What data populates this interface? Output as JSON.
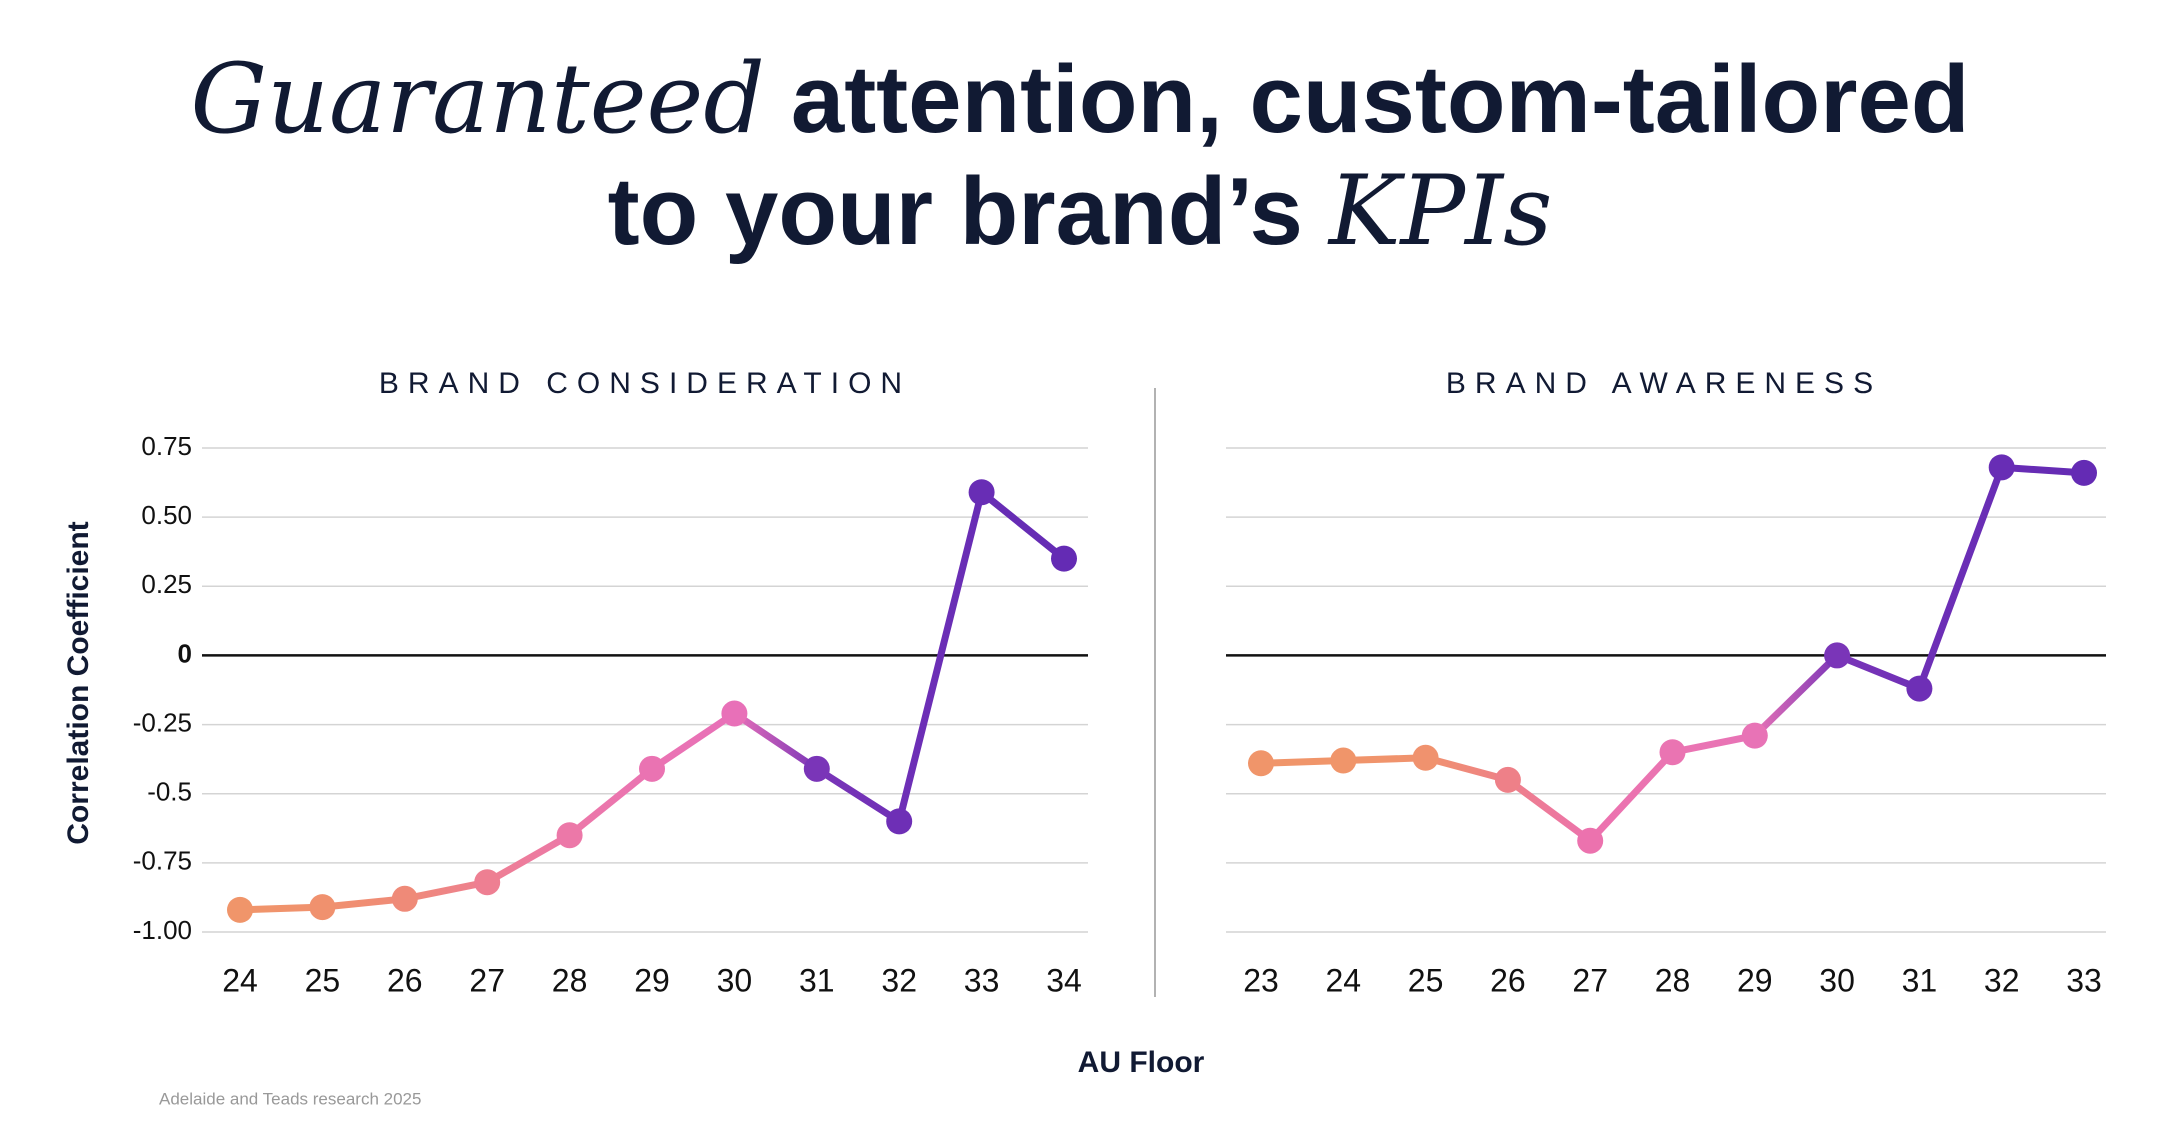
{
  "header": {
    "title": [
      [
        {
          "text": "Guaranteed",
          "italic": true
        },
        {
          "text": "attention, custom-tailored",
          "italic": false
        }
      ],
      [
        {
          "text": "to your brand’s",
          "italic": false
        },
        {
          "text": "KPIs",
          "italic": true
        }
      ]
    ]
  },
  "ylabel": "Correlation Coefficient",
  "xlabel": "AU Floor",
  "source": "Adelaide and Teads research 2025",
  "chart_data": [
    {
      "type": "line",
      "title": "BRAND CONSIDERATION",
      "categories": [
        "24",
        "25",
        "26",
        "27",
        "28",
        "29",
        "30",
        "31",
        "32",
        "33",
        "34"
      ],
      "series": [
        {
          "values": [
            -0.92,
            -0.91,
            -0.88,
            -0.82,
            -0.65,
            -0.41,
            -0.21,
            -0.41,
            -0.6,
            0.59,
            0.35
          ],
          "colors": [
            "#f0956a",
            "#f0916e",
            "#ef8a78",
            "#ee7f92",
            "#ec78a8",
            "#ea73b2",
            "#e870b8",
            "#7a35b8",
            "#6e2fb6",
            "#682db5",
            "#642bb4"
          ]
        }
      ],
      "ylim": [
        -1,
        0.75
      ],
      "yticks": [
        0.75,
        {
          "value": 0.5,
          "label": "0.50"
        },
        0.25,
        0,
        -0.25,
        -0.5,
        -0.75,
        {
          "value": -1,
          "label": "-1.00"
        }
      ],
      "show_ytick_labels": true,
      "grid": true
    },
    {
      "type": "line",
      "title": "BRAND AWARENESS",
      "categories": [
        "23",
        "24",
        "25",
        "26",
        "27",
        "28",
        "29",
        "30",
        "31",
        "32",
        "33"
      ],
      "series": [
        {
          "values": [
            -0.39,
            -0.38,
            -0.37,
            -0.45,
            -0.67,
            -0.35,
            -0.29,
            0,
            -0.12,
            0.68,
            0.66
          ],
          "colors": [
            "#f0956a",
            "#f0956a",
            "#f0926e",
            "#ee8088",
            "#ec72ae",
            "#ea74b2",
            "#e873b6",
            "#7a35b8",
            "#6e2fb6",
            "#682db5",
            "#642bb4"
          ]
        }
      ],
      "ylim": [
        -1,
        0.75
      ],
      "yticks": [
        0.75,
        {
          "value": 0.5,
          "label": "0.50"
        },
        0.25,
        0,
        -0.25,
        -0.5,
        -0.75,
        {
          "value": -1,
          "label": "-1.00"
        }
      ],
      "show_ytick_labels": false,
      "grid": true
    }
  ]
}
